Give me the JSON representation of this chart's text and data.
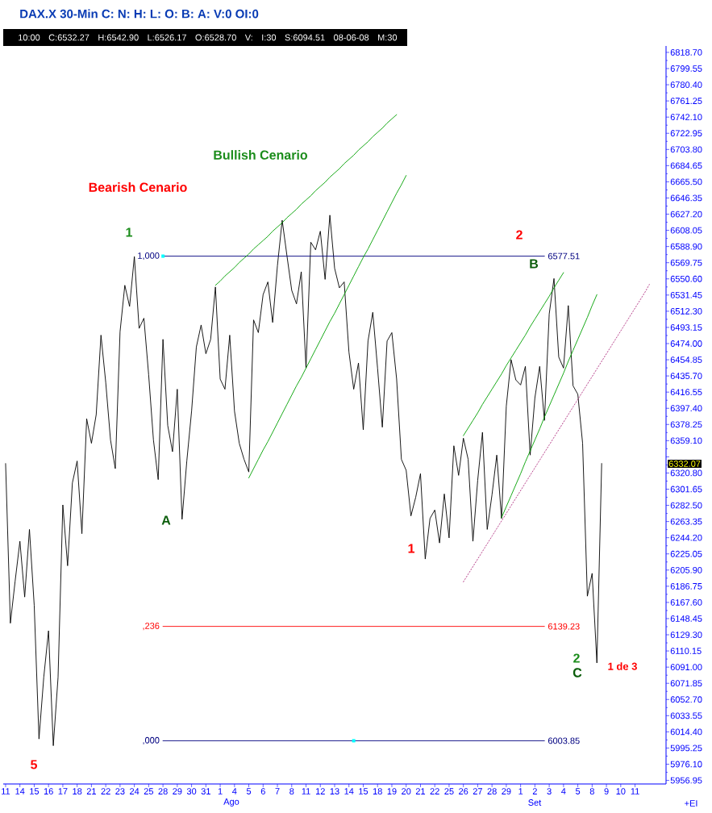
{
  "chart_data": {
    "type": "line",
    "title": "DAX.X 30-Min C: N: H: L: O: B: A: V:0 OI:0",
    "subtitle": "10:00 C:6532.27 H:6542.90 L:6526.17 O:6528.70 V: I:30 S:6094.51 08-06-08 M:30",
    "categories": [
      "11",
      null,
      null,
      "14",
      null,
      null,
      "15",
      null,
      null,
      "16",
      null,
      null,
      "17",
      null,
      null,
      "18",
      null,
      null,
      "21",
      null,
      null,
      "22",
      null,
      null,
      "23",
      null,
      null,
      "24",
      null,
      null,
      "25",
      null,
      null,
      "28",
      null,
      null,
      "29",
      null,
      null,
      "30",
      null,
      null,
      "31",
      null,
      null,
      "1",
      null,
      null,
      "4",
      null,
      null,
      "5",
      null,
      null,
      "6",
      null,
      null,
      "7",
      null,
      null,
      "8",
      null,
      null,
      "11",
      null,
      null,
      "12",
      null,
      null,
      "13",
      null,
      null,
      "14",
      null,
      null,
      "15",
      null,
      null,
      "18",
      null,
      null,
      "19",
      null,
      null,
      "20",
      null,
      null,
      "21",
      null,
      null,
      "22",
      null,
      null,
      "25",
      null,
      null,
      "26",
      null,
      null,
      "27",
      null,
      null,
      "28",
      null,
      null,
      "29",
      null,
      null,
      "1",
      null,
      null,
      "2",
      null,
      null,
      "3",
      null,
      null,
      "4",
      null,
      null,
      "5",
      null,
      null,
      "8",
      null,
      null,
      "9",
      null,
      null,
      "10",
      null,
      null,
      "11",
      null,
      null,
      null,
      null,
      null,
      null
    ],
    "ylim": [
      5952.7,
      6826.3
    ],
    "yticks": [
      {
        "value": 5956.95,
        "label": "5956.95"
      },
      {
        "value": 5976.1,
        "label": "5976.10"
      },
      {
        "value": 5995.25,
        "label": "5995.25"
      },
      {
        "value": 6014.4,
        "label": "6014.40"
      },
      {
        "value": 6033.55,
        "label": "6033.55"
      },
      {
        "value": 6052.7,
        "label": "6052.70"
      },
      {
        "value": 6071.85,
        "label": "6071.85"
      },
      {
        "value": 6091.0,
        "label": "6091.00"
      },
      {
        "value": 6110.15,
        "label": "6110.15"
      },
      {
        "value": 6129.3,
        "label": "6129.30"
      },
      {
        "value": 6148.45,
        "label": "6148.45"
      },
      {
        "value": 6167.6,
        "label": "6167.60"
      },
      {
        "value": 6186.75,
        "label": "6186.75"
      },
      {
        "value": 6205.9,
        "label": "6205.90"
      },
      {
        "value": 6225.05,
        "label": "6225.05"
      },
      {
        "value": 6244.2,
        "label": "6244.20"
      },
      {
        "value": 6263.35,
        "label": "6263.35"
      },
      {
        "value": 6282.5,
        "label": "6282.50"
      },
      {
        "value": 6301.65,
        "label": "6301.65"
      },
      {
        "value": 6320.8,
        "label": "6320.80"
      },
      {
        "value": 6339.95,
        "label": null
      },
      {
        "value": 6359.1,
        "label": "6359.10"
      },
      {
        "value": 6378.25,
        "label": "6378.25"
      },
      {
        "value": 6397.4,
        "label": "6397.40"
      },
      {
        "value": 6416.55,
        "label": "6416.55"
      },
      {
        "value": 6435.7,
        "label": "6435.70"
      },
      {
        "value": 6454.85,
        "label": "6454.85"
      },
      {
        "value": 6474.0,
        "label": "6474.00"
      },
      {
        "value": 6493.15,
        "label": "6493.15"
      },
      {
        "value": 6512.3,
        "label": "6512.30"
      },
      {
        "value": 6531.45,
        "label": "6531.45"
      },
      {
        "value": 6550.6,
        "label": "6550.60"
      },
      {
        "value": 6569.75,
        "label": "6569.75"
      },
      {
        "value": 6588.9,
        "label": "6588.90"
      },
      {
        "value": 6608.05,
        "label": "6608.05"
      },
      {
        "value": 6627.2,
        "label": "6627.20"
      },
      {
        "value": 6646.35,
        "label": "6646.35"
      },
      {
        "value": 6665.5,
        "label": "6665.50"
      },
      {
        "value": 6684.65,
        "label": "6684.65"
      },
      {
        "value": 6703.8,
        "label": "6703.80"
      },
      {
        "value": 6722.95,
        "label": "6722.95"
      },
      {
        "value": 6742.1,
        "label": "6742.10"
      },
      {
        "value": 6761.25,
        "label": "6761.25"
      },
      {
        "value": 6780.4,
        "label": "6780.40"
      },
      {
        "value": 6799.55,
        "label": "6799.55"
      },
      {
        "value": 6818.7,
        "label": "6818.70"
      }
    ],
    "series": [
      {
        "color": "#000000",
        "values": [
          6332,
          6143,
          6193,
          6240,
          6174,
          6254,
          6164,
          6006,
          6079,
          6134,
          5998,
          6079,
          6283,
          6211,
          6309,
          6335,
          6249,
          6385,
          6356,
          6390,
          6484,
          6428,
          6360,
          6326,
          6488,
          6543,
          6518,
          6577,
          6492,
          6504,
          6437,
          6360,
          6313,
          6479,
          6377,
          6346,
          6420,
          6266,
          6335,
          6394,
          6470,
          6496,
          6462,
          6479,
          6541,
          6432,
          6420,
          6484,
          6394,
          6356,
          6337,
          6322,
          6502,
          6487,
          6532,
          6547,
          6499,
          6566,
          6620,
          6578,
          6537,
          6521,
          6559,
          6445,
          6594,
          6585,
          6607,
          6550,
          6626,
          6563,
          6540,
          6547,
          6464,
          6420,
          6451,
          6372,
          6477,
          6511,
          6445,
          6375,
          6477,
          6487,
          6432,
          6337,
          6324,
          6270,
          6292,
          6320,
          6219,
          6267,
          6277,
          6238,
          6296,
          6244,
          6353,
          6318,
          6362,
          6337,
          6240,
          6312,
          6369,
          6254,
          6295,
          6342,
          6267,
          6400,
          6455,
          6431,
          6425,
          6447,
          6342,
          6410,
          6447,
          6383,
          6509,
          6551,
          6458,
          6445,
          6519,
          6424,
          6414,
          6356,
          6175,
          6202,
          6096,
          6332.07,
          null,
          null,
          null,
          null,
          null,
          null,
          null,
          null,
          null,
          null,
          null,
          null,
          null
        ]
      },
      {
        "name": "1,000",
        "color": "#000080",
        "values": [
          null,
          null,
          null,
          null,
          null,
          null,
          null,
          null,
          null,
          null,
          null,
          null,
          null,
          null,
          null,
          null,
          null,
          null,
          null,
          null,
          null,
          null,
          null,
          null,
          null,
          null,
          null,
          null,
          null,
          null,
          null,
          null,
          null,
          6577.51,
          6577.51,
          6577.51,
          6577.51,
          6577.51,
          6577.51,
          6577.51,
          6577.51,
          6577.51,
          6577.51,
          6577.51,
          6577.51,
          6577.51,
          6577.51,
          6577.51,
          6577.51,
          6577.51,
          6577.51,
          6577.51,
          6577.51,
          6577.51,
          6577.51,
          6577.51,
          6577.51,
          6577.51,
          6577.51,
          6577.51,
          6577.51,
          6577.51,
          6577.51,
          6577.51,
          6577.51,
          6577.51,
          6577.51,
          6577.51,
          6577.51,
          6577.51,
          6577.51,
          6577.51,
          6577.51,
          6577.51,
          6577.51,
          6577.51,
          6577.51,
          6577.51,
          6577.51,
          6577.51,
          6577.51,
          6577.51,
          6577.51,
          6577.51,
          6577.51,
          6577.51,
          6577.51,
          6577.51,
          6577.51,
          6577.51,
          6577.51,
          6577.51,
          6577.51,
          6577.51,
          6577.51,
          6577.51,
          6577.51,
          6577.51,
          6577.51,
          6577.51,
          6577.51,
          6577.51,
          6577.51,
          6577.51,
          6577.51,
          6577.51,
          6577.51,
          6577.51,
          6577.51,
          6577.51,
          6577.51,
          6577.51,
          6577.51,
          6577.51,
          null,
          null,
          null,
          null,
          null,
          null,
          null,
          null,
          null,
          null,
          null,
          null,
          null,
          null,
          null,
          null,
          null,
          null,
          null,
          null,
          null,
          null,
          null,
          null,
          null
        ],
        "value_labels": [
          null,
          null,
          null,
          null,
          null,
          null,
          null,
          null,
          null,
          null,
          null,
          null,
          null,
          null,
          null,
          null,
          null,
          null,
          null,
          null,
          null,
          null,
          null,
          null,
          null,
          null,
          null,
          null,
          null,
          null,
          null,
          null,
          null,
          null,
          null,
          null,
          null,
          null,
          null,
          null,
          null,
          null,
          null,
          null,
          null,
          null,
          null,
          null,
          null,
          null,
          null,
          null,
          null,
          null,
          null,
          null,
          null,
          null,
          null,
          null,
          null,
          null,
          null,
          null,
          null,
          null,
          null,
          null,
          null,
          null,
          null,
          null,
          null,
          null,
          null,
          null,
          null,
          null,
          null,
          null,
          null,
          null,
          null,
          null,
          null,
          null,
          null,
          null,
          null,
          null,
          null,
          null,
          null,
          null,
          null,
          null,
          null,
          null,
          null,
          null,
          null,
          null,
          null,
          null,
          null,
          null,
          null,
          null,
          null,
          null,
          null,
          null,
          null,
          "6577.51",
          null,
          null,
          null,
          null,
          null,
          null,
          null,
          null,
          null,
          null,
          null,
          null,
          null,
          null,
          null,
          null,
          null,
          null,
          null,
          null,
          null,
          null,
          null,
          null,
          null
        ]
      },
      {
        "name": ",236",
        "color": "#ff0000",
        "values": [
          null,
          null,
          null,
          null,
          null,
          null,
          null,
          null,
          null,
          null,
          null,
          null,
          null,
          null,
          null,
          null,
          null,
          null,
          null,
          null,
          null,
          null,
          null,
          null,
          null,
          null,
          null,
          null,
          null,
          null,
          null,
          null,
          null,
          6139.23,
          6139.23,
          6139.23,
          6139.23,
          6139.23,
          6139.23,
          6139.23,
          6139.23,
          6139.23,
          6139.23,
          6139.23,
          6139.23,
          6139.23,
          6139.23,
          6139.23,
          6139.23,
          6139.23,
          6139.23,
          6139.23,
          6139.23,
          6139.23,
          6139.23,
          6139.23,
          6139.23,
          6139.23,
          6139.23,
          6139.23,
          6139.23,
          6139.23,
          6139.23,
          6139.23,
          6139.23,
          6139.23,
          6139.23,
          6139.23,
          6139.23,
          6139.23,
          6139.23,
          6139.23,
          6139.23,
          6139.23,
          6139.23,
          6139.23,
          6139.23,
          6139.23,
          6139.23,
          6139.23,
          6139.23,
          6139.23,
          6139.23,
          6139.23,
          6139.23,
          6139.23,
          6139.23,
          6139.23,
          6139.23,
          6139.23,
          6139.23,
          6139.23,
          6139.23,
          6139.23,
          6139.23,
          6139.23,
          6139.23,
          6139.23,
          6139.23,
          6139.23,
          6139.23,
          6139.23,
          6139.23,
          6139.23,
          6139.23,
          6139.23,
          6139.23,
          6139.23,
          6139.23,
          6139.23,
          6139.23,
          6139.23,
          6139.23,
          6139.23,
          null,
          null,
          null,
          null,
          null,
          null,
          null,
          null,
          null,
          null,
          null,
          null,
          null,
          null,
          null,
          null,
          null,
          null,
          null,
          null,
          null,
          null,
          null,
          null,
          null
        ],
        "value_labels": [
          null,
          null,
          null,
          null,
          null,
          null,
          null,
          null,
          null,
          null,
          null,
          null,
          null,
          null,
          null,
          null,
          null,
          null,
          null,
          null,
          null,
          null,
          null,
          null,
          null,
          null,
          null,
          null,
          null,
          null,
          null,
          null,
          null,
          null,
          null,
          null,
          null,
          null,
          null,
          null,
          null,
          null,
          null,
          null,
          null,
          null,
          null,
          null,
          null,
          null,
          null,
          null,
          null,
          null,
          null,
          null,
          null,
          null,
          null,
          null,
          null,
          null,
          null,
          null,
          null,
          null,
          null,
          null,
          null,
          null,
          null,
          null,
          null,
          null,
          null,
          null,
          null,
          null,
          null,
          null,
          null,
          null,
          null,
          null,
          null,
          null,
          null,
          null,
          null,
          null,
          null,
          null,
          null,
          null,
          null,
          null,
          null,
          null,
          null,
          null,
          null,
          null,
          null,
          null,
          null,
          null,
          null,
          null,
          null,
          null,
          null,
          null,
          null,
          "6139.23",
          null,
          null,
          null,
          null,
          null,
          null,
          null,
          null,
          null,
          null,
          null,
          null,
          null,
          null,
          null,
          null,
          null,
          null,
          null,
          null,
          null,
          null,
          null,
          null,
          null
        ]
      },
      {
        "name": ",000",
        "color": "#000080",
        "values": [
          null,
          null,
          null,
          null,
          null,
          null,
          null,
          null,
          null,
          null,
          null,
          null,
          null,
          null,
          null,
          null,
          null,
          null,
          null,
          null,
          null,
          null,
          null,
          null,
          null,
          null,
          null,
          null,
          null,
          null,
          null,
          null,
          null,
          6003.85,
          6003.85,
          6003.85,
          6003.85,
          6003.85,
          6003.85,
          6003.85,
          6003.85,
          6003.85,
          6003.85,
          6003.85,
          6003.85,
          6003.85,
          6003.85,
          6003.85,
          6003.85,
          6003.85,
          6003.85,
          6003.85,
          6003.85,
          6003.85,
          6003.85,
          6003.85,
          6003.85,
          6003.85,
          6003.85,
          6003.85,
          6003.85,
          6003.85,
          6003.85,
          6003.85,
          6003.85,
          6003.85,
          6003.85,
          6003.85,
          6003.85,
          6003.85,
          6003.85,
          6003.85,
          6003.85,
          6003.85,
          6003.85,
          6003.85,
          6003.85,
          6003.85,
          6003.85,
          6003.85,
          6003.85,
          6003.85,
          6003.85,
          6003.85,
          6003.85,
          6003.85,
          6003.85,
          6003.85,
          6003.85,
          6003.85,
          6003.85,
          6003.85,
          6003.85,
          6003.85,
          6003.85,
          6003.85,
          6003.85,
          6003.85,
          6003.85,
          6003.85,
          6003.85,
          6003.85,
          6003.85,
          6003.85,
          6003.85,
          6003.85,
          6003.85,
          6003.85,
          6003.85,
          6003.85,
          6003.85,
          6003.85,
          6003.85,
          6003.85,
          null,
          null,
          null,
          null,
          null,
          null,
          null,
          null,
          null,
          null,
          null,
          null,
          null,
          null,
          null,
          null,
          null,
          null,
          null,
          null,
          null,
          null,
          null,
          null,
          null
        ],
        "value_labels": [
          null,
          null,
          null,
          null,
          null,
          null,
          null,
          null,
          null,
          null,
          null,
          null,
          null,
          null,
          null,
          null,
          null,
          null,
          null,
          null,
          null,
          null,
          null,
          null,
          null,
          null,
          null,
          null,
          null,
          null,
          null,
          null,
          null,
          null,
          null,
          null,
          null,
          null,
          null,
          null,
          null,
          null,
          null,
          null,
          null,
          null,
          null,
          null,
          null,
          null,
          null,
          null,
          null,
          null,
          null,
          null,
          null,
          null,
          null,
          null,
          null,
          null,
          null,
          null,
          null,
          null,
          null,
          null,
          null,
          null,
          null,
          null,
          null,
          null,
          null,
          null,
          null,
          null,
          null,
          null,
          null,
          null,
          null,
          null,
          null,
          null,
          null,
          null,
          null,
          null,
          null,
          null,
          null,
          null,
          null,
          null,
          null,
          null,
          null,
          null,
          null,
          null,
          null,
          null,
          null,
          null,
          null,
          null,
          null,
          null,
          null,
          null,
          null,
          "6003.85",
          null,
          null,
          null,
          null,
          null,
          null,
          null,
          null,
          null,
          null,
          null,
          null,
          null,
          null,
          null,
          null,
          null,
          null,
          null,
          null,
          null,
          null,
          null,
          null,
          null
        ]
      },
      {
        "color": "#00a000",
        "values": [
          null,
          null,
          null,
          null,
          null,
          null,
          null,
          null,
          null,
          null,
          null,
          null,
          null,
          null,
          null,
          null,
          null,
          null,
          null,
          null,
          null,
          null,
          null,
          null,
          null,
          null,
          null,
          null,
          null,
          null,
          null,
          null,
          null,
          null,
          null,
          null,
          null,
          null,
          null,
          null,
          null,
          null,
          null,
          null,
          6543,
          6548,
          6554,
          6559,
          6564,
          6570,
          6575,
          6580,
          6586,
          6591,
          6596,
          6601,
          6607,
          6612,
          6617,
          6623,
          6628,
          6633,
          6639,
          6644,
          6649,
          6655,
          6660,
          6665,
          6671,
          6676,
          6681,
          6687,
          6692,
          6697,
          6703,
          6708,
          6713,
          6719,
          6724,
          6729,
          6735,
          6740,
          6745,
          null,
          null,
          null,
          null,
          null,
          null,
          null,
          null,
          null,
          null,
          null,
          null,
          null,
          null,
          null,
          null,
          null,
          null,
          null,
          null,
          null,
          null,
          null,
          null,
          null,
          null,
          null,
          null,
          null,
          null,
          null,
          null,
          null,
          null,
          null,
          null,
          null,
          null,
          null,
          null,
          null,
          null,
          null,
          null,
          null,
          null,
          null,
          null,
          null,
          null,
          null,
          null,
          null,
          null,
          null,
          null
        ]
      },
      {
        "color": "#00a000",
        "values": [
          null,
          null,
          null,
          null,
          null,
          null,
          null,
          null,
          null,
          null,
          null,
          null,
          null,
          null,
          null,
          null,
          null,
          null,
          null,
          null,
          null,
          null,
          null,
          null,
          null,
          null,
          null,
          null,
          null,
          null,
          null,
          null,
          null,
          null,
          null,
          null,
          null,
          null,
          null,
          null,
          null,
          null,
          null,
          null,
          null,
          null,
          null,
          null,
          null,
          null,
          null,
          6315,
          6326,
          6337,
          6348,
          6358,
          6369,
          6380,
          6391,
          6402,
          6413,
          6424,
          6434,
          6445,
          6456,
          6467,
          6478,
          6489,
          6500,
          6510,
          6521,
          6532,
          6543,
          6554,
          6565,
          6576,
          6586,
          6597,
          6608,
          6619,
          6630,
          6641,
          6652,
          6662,
          6673,
          null,
          null,
          null,
          null,
          null,
          null,
          null,
          null,
          null,
          null,
          null,
          null,
          null,
          null,
          null,
          null,
          null,
          null,
          null,
          null,
          null,
          null,
          null,
          null,
          null,
          null,
          null,
          null,
          null,
          null,
          null,
          null,
          null,
          null,
          null,
          null,
          null,
          null,
          null,
          null,
          null,
          null,
          null,
          null,
          null,
          null,
          null,
          null,
          null,
          null,
          null,
          null,
          null,
          null
        ]
      },
      {
        "color": "#00a000",
        "values": [
          null,
          null,
          null,
          null,
          null,
          null,
          null,
          null,
          null,
          null,
          null,
          null,
          null,
          null,
          null,
          null,
          null,
          null,
          null,
          null,
          null,
          null,
          null,
          null,
          null,
          null,
          null,
          null,
          null,
          null,
          null,
          null,
          null,
          null,
          null,
          null,
          null,
          null,
          null,
          null,
          null,
          null,
          null,
          null,
          null,
          null,
          null,
          null,
          null,
          null,
          null,
          null,
          null,
          null,
          null,
          null,
          null,
          null,
          null,
          null,
          null,
          null,
          null,
          null,
          null,
          null,
          null,
          null,
          null,
          null,
          null,
          null,
          null,
          null,
          null,
          null,
          null,
          null,
          null,
          null,
          null,
          null,
          null,
          null,
          null,
          null,
          null,
          null,
          null,
          null,
          null,
          null,
          null,
          null,
          null,
          null,
          6365,
          6374,
          6383,
          6392,
          6402,
          6411,
          6420,
          6429,
          6438,
          6448,
          6457,
          6466,
          6475,
          6484,
          6494,
          6503,
          6512,
          6521,
          6530,
          6540,
          6549,
          6558,
          null,
          null,
          null,
          null,
          null,
          null,
          null,
          null,
          null,
          null,
          null,
          null,
          null,
          null,
          null,
          null,
          null,
          null,
          null,
          null,
          null
        ]
      },
      {
        "color": "#00a000",
        "values": [
          null,
          null,
          null,
          null,
          null,
          null,
          null,
          null,
          null,
          null,
          null,
          null,
          null,
          null,
          null,
          null,
          null,
          null,
          null,
          null,
          null,
          null,
          null,
          null,
          null,
          null,
          null,
          null,
          null,
          null,
          null,
          null,
          null,
          null,
          null,
          null,
          null,
          null,
          null,
          null,
          null,
          null,
          null,
          null,
          null,
          null,
          null,
          null,
          null,
          null,
          null,
          null,
          null,
          null,
          null,
          null,
          null,
          null,
          null,
          null,
          null,
          null,
          null,
          null,
          null,
          null,
          null,
          null,
          null,
          null,
          null,
          null,
          null,
          null,
          null,
          null,
          null,
          null,
          null,
          null,
          null,
          null,
          null,
          null,
          null,
          null,
          null,
          null,
          null,
          null,
          null,
          null,
          null,
          null,
          null,
          null,
          null,
          null,
          null,
          null,
          null,
          null,
          null,
          null,
          6268,
          6281,
          6294,
          6307,
          6320,
          6334,
          6347,
          6360,
          6373,
          6387,
          6400,
          6413,
          6426,
          6439,
          6453,
          6466,
          6479,
          6492,
          6505,
          6519,
          6532,
          null,
          null,
          null,
          null,
          null,
          null,
          null,
          null,
          null,
          null,
          null,
          null,
          null,
          null
        ]
      },
      {
        "color": "#b03080",
        "line_style": "dotted",
        "values": [
          null,
          null,
          null,
          null,
          null,
          null,
          null,
          null,
          null,
          null,
          null,
          null,
          null,
          null,
          null,
          null,
          null,
          null,
          null,
          null,
          null,
          null,
          null,
          null,
          null,
          null,
          null,
          null,
          null,
          null,
          null,
          null,
          null,
          null,
          null,
          null,
          null,
          null,
          null,
          null,
          null,
          null,
          null,
          null,
          null,
          null,
          null,
          null,
          null,
          null,
          null,
          null,
          null,
          null,
          null,
          null,
          null,
          null,
          null,
          null,
          null,
          null,
          null,
          null,
          null,
          null,
          null,
          null,
          null,
          null,
          null,
          null,
          null,
          null,
          null,
          null,
          null,
          null,
          null,
          null,
          null,
          null,
          null,
          null,
          null,
          null,
          null,
          null,
          null,
          null,
          null,
          null,
          null,
          null,
          null,
          null,
          6192,
          6201,
          6210,
          6219,
          6228,
          6237,
          6246,
          6255,
          6264,
          6273,
          6282,
          6291,
          6300,
          6309,
          6318,
          6327,
          6336,
          6345,
          6354,
          6363,
          6372,
          6381,
          6390,
          6399,
          6408,
          6417,
          6426,
          6435,
          6444,
          6453,
          6462,
          6471,
          6480,
          6489,
          6498,
          6507,
          6516,
          6525,
          6534,
          6544,
          null,
          null,
          null
        ]
      },
      {
        "type": "scatter",
        "marker": "square",
        "color": "#00ffff",
        "values": [
          null,
          null,
          null,
          null,
          null,
          null,
          null,
          null,
          null,
          null,
          null,
          null,
          null,
          null,
          null,
          null,
          null,
          null,
          null,
          null,
          null,
          null,
          null,
          null,
          null,
          null,
          null,
          null,
          null,
          null,
          null,
          null,
          null,
          6577.51,
          null,
          null,
          null,
          null,
          null,
          null,
          null,
          null,
          null,
          null,
          null,
          null,
          null,
          null,
          null,
          null,
          null,
          null,
          null,
          null,
          null,
          null,
          null,
          null,
          null,
          null,
          null,
          null,
          null,
          null,
          null,
          null,
          null,
          null,
          null,
          null,
          null,
          null,
          null,
          6003.85,
          null,
          null,
          null,
          null,
          null,
          null,
          null,
          null,
          null,
          null,
          null,
          null,
          null,
          null,
          null,
          null,
          null,
          null,
          null,
          null,
          null,
          null,
          null,
          null,
          null,
          null,
          null,
          null,
          null,
          null,
          null,
          null,
          null,
          null,
          null,
          null,
          null,
          null,
          null,
          null,
          null,
          null,
          null,
          null,
          null,
          null,
          null,
          null,
          null,
          null,
          null,
          null,
          null,
          null,
          null,
          null,
          null,
          null,
          null,
          null,
          null,
          null,
          null,
          null,
          null
        ]
      }
    ],
    "annotations": [
      "Bullish Cenario",
      "Bearish Cenario",
      "1",
      "A",
      "1",
      "2",
      "B",
      "2",
      "C",
      "1 de 3",
      "5",
      "Ago",
      "Set",
      "6332.07",
      "+EI"
    ]
  }
}
